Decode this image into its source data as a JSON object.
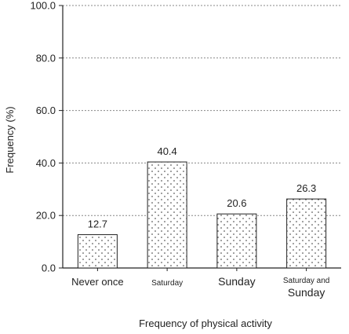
{
  "chart_data": {
    "type": "bar",
    "title": "",
    "xlabel": "Frequency of physical activity",
    "ylabel": "Frequency (%)",
    "ylim": [
      0,
      100
    ],
    "yticks": [
      "0.0",
      "20.0",
      "40.0",
      "60.0",
      "80.0",
      "100.0"
    ],
    "grid": true,
    "categories": [
      [
        "Never once"
      ],
      [
        "Saturday"
      ],
      [
        "Sunday"
      ],
      [
        "Saturday and",
        "Sunday"
      ]
    ],
    "values": [
      12.7,
      40.4,
      20.6,
      26.3
    ],
    "value_labels": [
      "12.7",
      "40.4",
      "20.6",
      "26.3"
    ],
    "bar_fill": "dotted",
    "colors": {
      "bar_stroke": "#222222",
      "dots": "#333333",
      "grid": "#888888"
    }
  }
}
